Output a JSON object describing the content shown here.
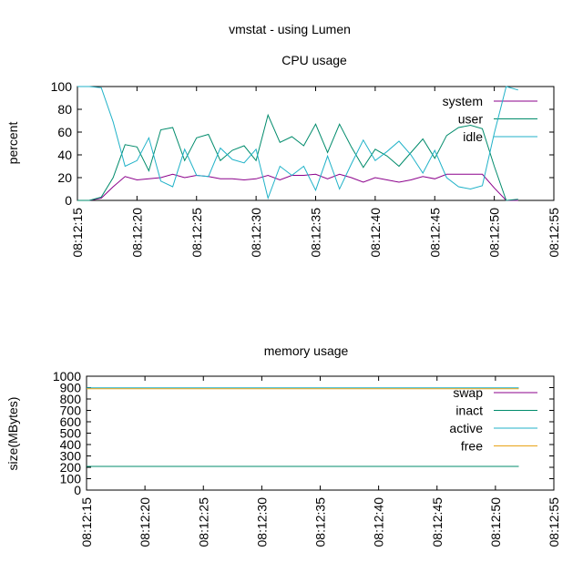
{
  "title": "vmstat - using Lumen",
  "colors": {
    "system": "#8b008b",
    "user": "#008b6b",
    "idle": "#20b2c8",
    "swap": "#8b008b",
    "inact": "#008b6b",
    "active": "#20b2c8",
    "free": "#e8a317"
  },
  "chart_data": [
    {
      "type": "line",
      "title": "CPU usage",
      "xlabel": "",
      "ylabel": "percent",
      "x_ticks": [
        "08:12:15",
        "08:12:20",
        "08:12:25",
        "08:12:30",
        "08:12:35",
        "08:12:40",
        "08:12:45",
        "08:12:50",
        "08:12:55"
      ],
      "x_range": [
        "08:12:15",
        "08:12:55"
      ],
      "ylim": [
        0,
        100
      ],
      "y_ticks": [
        0,
        20,
        40,
        60,
        80,
        100
      ],
      "legend": "top-right",
      "grid": false,
      "x": [
        "08:12:15",
        "08:12:16",
        "08:12:17",
        "08:12:18",
        "08:12:19",
        "08:12:20",
        "08:12:21",
        "08:12:22",
        "08:12:23",
        "08:12:24",
        "08:12:25",
        "08:12:26",
        "08:12:27",
        "08:12:28",
        "08:12:29",
        "08:12:30",
        "08:12:31",
        "08:12:32",
        "08:12:33",
        "08:12:34",
        "08:12:35",
        "08:12:36",
        "08:12:37",
        "08:12:38",
        "08:12:39",
        "08:12:40",
        "08:12:41",
        "08:12:42",
        "08:12:43",
        "08:12:44",
        "08:12:45",
        "08:12:46",
        "08:12:47",
        "08:12:48",
        "08:12:49",
        "08:12:50",
        "08:12:51",
        "08:12:52"
      ],
      "series": [
        {
          "name": "system",
          "color_key": "system",
          "values": [
            0,
            0,
            2,
            12,
            21,
            18,
            19,
            20,
            23,
            20,
            22,
            21,
            19,
            19,
            18,
            19,
            22,
            18,
            22,
            22,
            23,
            19,
            23,
            20,
            16,
            20,
            18,
            16,
            18,
            21,
            19,
            23,
            23,
            23,
            23,
            11,
            0,
            0
          ]
        },
        {
          "name": "user",
          "color_key": "user",
          "values": [
            0,
            0,
            3,
            20,
            49,
            47,
            26,
            62,
            64,
            35,
            55,
            58,
            35,
            44,
            48,
            35,
            75,
            51,
            56,
            48,
            67,
            42,
            67,
            47,
            29,
            45,
            39,
            30,
            42,
            54,
            37,
            57,
            64,
            66,
            63,
            30,
            0,
            1
          ]
        },
        {
          "name": "idle",
          "color_key": "idle",
          "values": [
            100,
            100,
            99,
            69,
            30,
            35,
            55,
            17,
            12,
            45,
            22,
            21,
            46,
            36,
            33,
            45,
            2,
            30,
            22,
            30,
            9,
            39,
            10,
            32,
            53,
            35,
            43,
            52,
            40,
            24,
            44,
            20,
            12,
            10,
            13,
            59,
            100,
            97
          ]
        }
      ]
    },
    {
      "type": "line",
      "title": "memory usage",
      "xlabel": "",
      "ylabel": "size(MBytes)",
      "x_ticks": [
        "08:12:15",
        "08:12:20",
        "08:12:25",
        "08:12:30",
        "08:12:35",
        "08:12:40",
        "08:12:45",
        "08:12:50",
        "08:12:55"
      ],
      "x_range": [
        "08:12:15",
        "08:12:55"
      ],
      "ylim": [
        0,
        1000
      ],
      "y_ticks": [
        0,
        100,
        200,
        300,
        400,
        500,
        600,
        700,
        800,
        900,
        1000
      ],
      "legend": "top-right",
      "grid": false,
      "x": [
        "08:12:15",
        "08:12:19",
        "08:12:52"
      ],
      "series": [
        {
          "name": "swap",
          "color_key": "swap",
          "values": [
            null,
            null,
            null
          ]
        },
        {
          "name": "inact",
          "color_key": "inact",
          "values": [
            208,
            208,
            208
          ]
        },
        {
          "name": "active",
          "color_key": "active",
          "values": [
            898,
            898,
            898
          ]
        },
        {
          "name": "free",
          "color_key": "free",
          "values": [
            890,
            890,
            890
          ]
        }
      ]
    }
  ]
}
